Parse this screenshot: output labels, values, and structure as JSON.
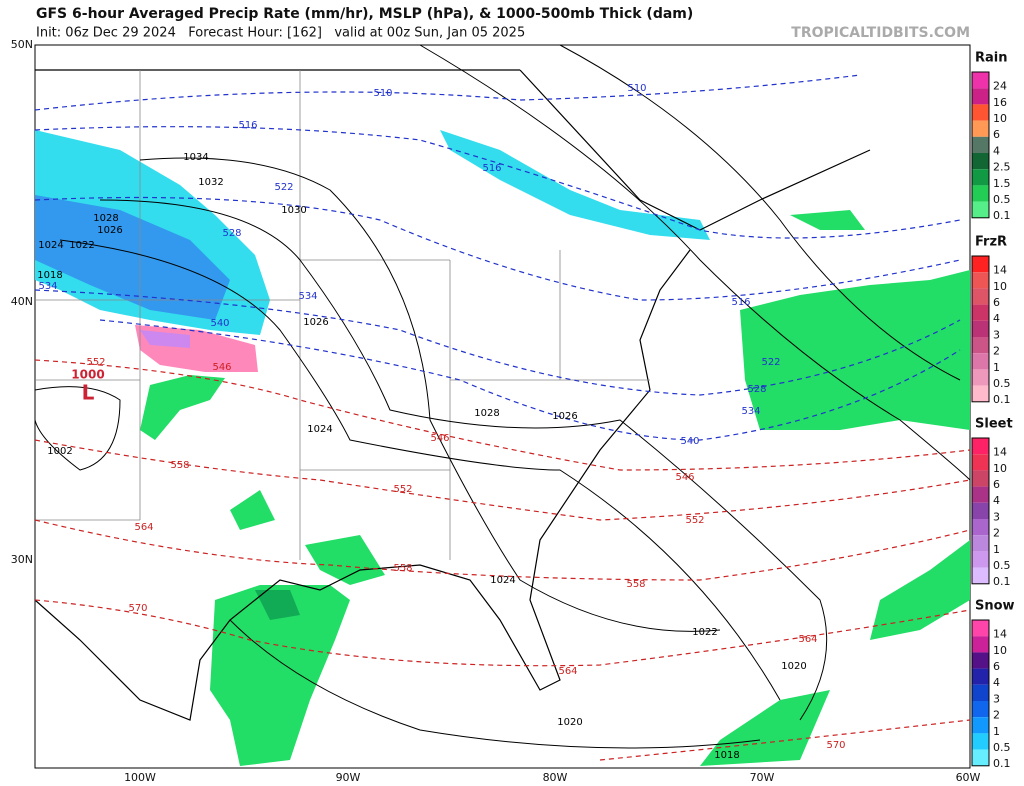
{
  "header": {
    "title": "GFS 6-hour Averaged Precip Rate (mm/hr), MSLP (hPa), & 1000-500mb Thick (dam)",
    "subtitle": "Init: 06z Dec 29 2024   Forecast Hour: [162]   valid at 00z Sun, Jan 05 2025",
    "credit": "TROPICALTIDBITS.COM"
  },
  "map": {
    "lat_labels": [
      "50N",
      "40N",
      "30N"
    ],
    "lon_labels": [
      "100W",
      "90W",
      "80W",
      "70W",
      "60W"
    ],
    "low_label": "L",
    "low_pressure": "1000",
    "isobar_labels": [
      "1034",
      "1032",
      "1030",
      "1028",
      "1026",
      "1024",
      "1022",
      "1018",
      "1026",
      "1002",
      "1024",
      "1028",
      "1026",
      "1024",
      "1022",
      "1020",
      "1020",
      "1018"
    ],
    "thickness_labels_cold": [
      "510",
      "510",
      "516",
      "516",
      "522",
      "528",
      "534",
      "534",
      "540",
      "516",
      "522",
      "528",
      "534",
      "540"
    ],
    "thickness_labels_warm": [
      "552",
      "546",
      "558",
      "546",
      "552",
      "546",
      "552",
      "564",
      "558",
      "558",
      "570",
      "564",
      "564",
      "570"
    ]
  },
  "legend": [
    {
      "name": "Rain",
      "levels": [
        "24",
        "16",
        "10",
        "6",
        "4",
        "2.5",
        "1.5",
        "0.5",
        "0.1"
      ]
    },
    {
      "name": "FrzR",
      "levels": [
        "14",
        "10",
        "6",
        "4",
        "3",
        "2",
        "1",
        "0.5",
        "0.1"
      ]
    },
    {
      "name": "Sleet",
      "levels": [
        "14",
        "10",
        "6",
        "4",
        "3",
        "2",
        "1",
        "0.5",
        "0.1"
      ]
    },
    {
      "name": "Snow",
      "levels": [
        "14",
        "10",
        "6",
        "4",
        "3",
        "2",
        "1",
        "0.5",
        "0.1"
      ]
    }
  ]
}
